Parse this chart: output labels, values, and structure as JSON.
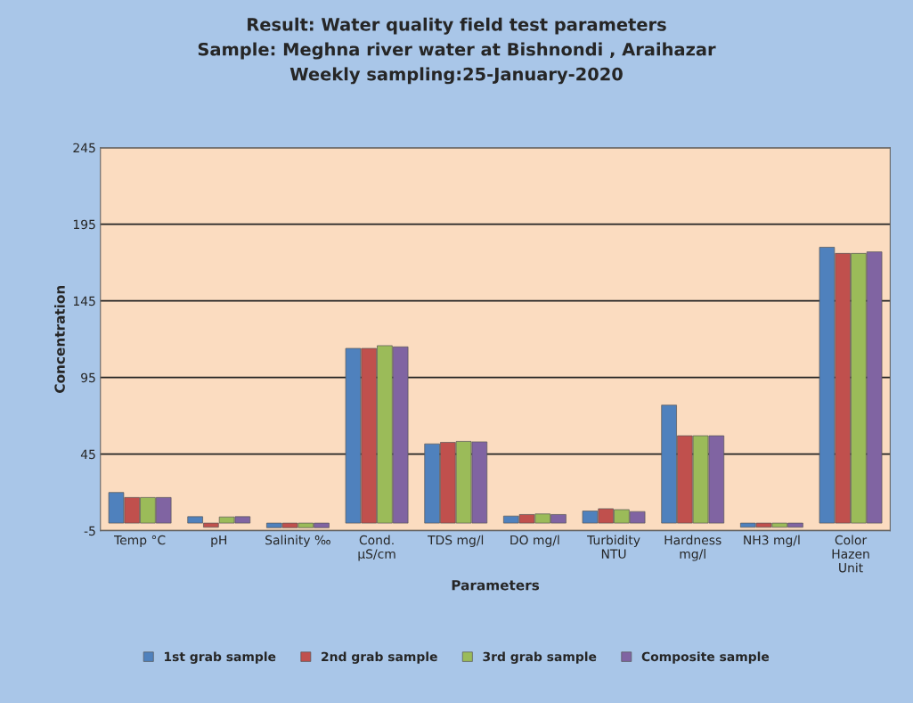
{
  "chart_data": {
    "type": "bar",
    "title": "Result: Water quality field test parameters\nSample: Meghna river water at Bishnondi , Araihazar\nWeekly sampling:25-January-2020",
    "xlabel": "Parameters",
    "ylabel": "Concentration",
    "categories": [
      "Temp °C",
      "pH",
      "Salinity ‰",
      "Cond.\nµS/cm",
      "TDS mg/l",
      "DO mg/l",
      "Turbidity\nNTU",
      "Hardness\nmg/l",
      "NH3 mg/l",
      "Color\nHazen\nUnit"
    ],
    "series": [
      {
        "name": "1st grab sample",
        "color": "#4f81bd",
        "values": [
          20,
          4.2,
          -3,
          114,
          51.7,
          4.6,
          7.9,
          77,
          -2.7,
          180
        ]
      },
      {
        "name": "2nd grab sample",
        "color": "#c0504d",
        "values": [
          16.7,
          -2.7,
          -3,
          114,
          52.7,
          5.6,
          9.4,
          57,
          -2.7,
          176
        ]
      },
      {
        "name": "3rd grab sample",
        "color": "#9bbb59",
        "values": [
          16.7,
          4,
          -3,
          115.8,
          53.3,
          6,
          8.8,
          57,
          -2.7,
          176
        ]
      },
      {
        "name": "Composite sample",
        "color": "#8064a2",
        "values": [
          16.7,
          4.2,
          -3,
          115,
          53,
          5.6,
          7.5,
          57,
          -2.7,
          177
        ]
      }
    ],
    "ylim": [
      -5,
      245
    ],
    "yticks": [
      -5,
      45,
      95,
      145,
      195,
      245
    ],
    "grid": "y",
    "legend": "bottom"
  }
}
